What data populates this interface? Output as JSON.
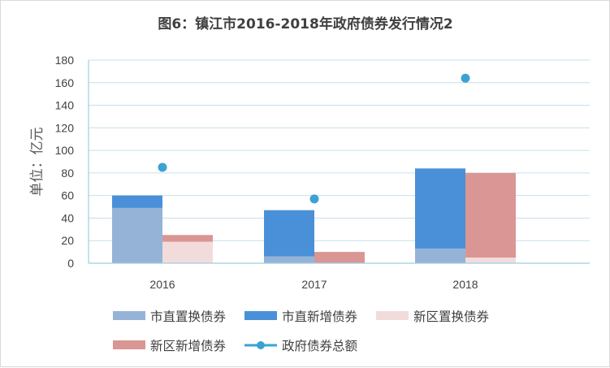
{
  "chart_data": {
    "type": "bar",
    "title": "图6：镇江市2016-2018年政府债券发行情况2",
    "ylabel": "单位：亿元",
    "xlabel": "",
    "ylim": [
      0,
      180
    ],
    "yticks": [
      "0",
      "20",
      "40",
      "60",
      "80",
      "100",
      "120",
      "140",
      "160",
      "180"
    ],
    "categories": [
      "2016",
      "2017",
      "2018"
    ],
    "grid": true,
    "legend_position": "bottom",
    "stacks": [
      {
        "name": "市直",
        "series": [
          {
            "name": "市直置换债券",
            "values": [
              49,
              6,
              13
            ]
          },
          {
            "name": "市直新增债券",
            "values": [
              11,
              41,
              71
            ]
          }
        ]
      },
      {
        "name": "新区",
        "series": [
          {
            "name": "新区置换债券",
            "values": [
              19,
              0,
              5
            ]
          },
          {
            "name": "新区新增债券",
            "values": [
              6,
              10,
              75
            ]
          }
        ]
      }
    ],
    "line_series": {
      "name": "政府债券总额",
      "values": [
        85,
        57,
        164
      ]
    },
    "colors": {
      "市直置换债券": "#95b3d7",
      "市直新增债券": "#4a90d9",
      "新区置换债券": "#f2dcdb",
      "新区新增债券": "#da9694",
      "政府债券总额": "#3aa3d4",
      "gridline": "#c6e0ec",
      "axis": "#9ecde3",
      "text": "#404040"
    }
  }
}
